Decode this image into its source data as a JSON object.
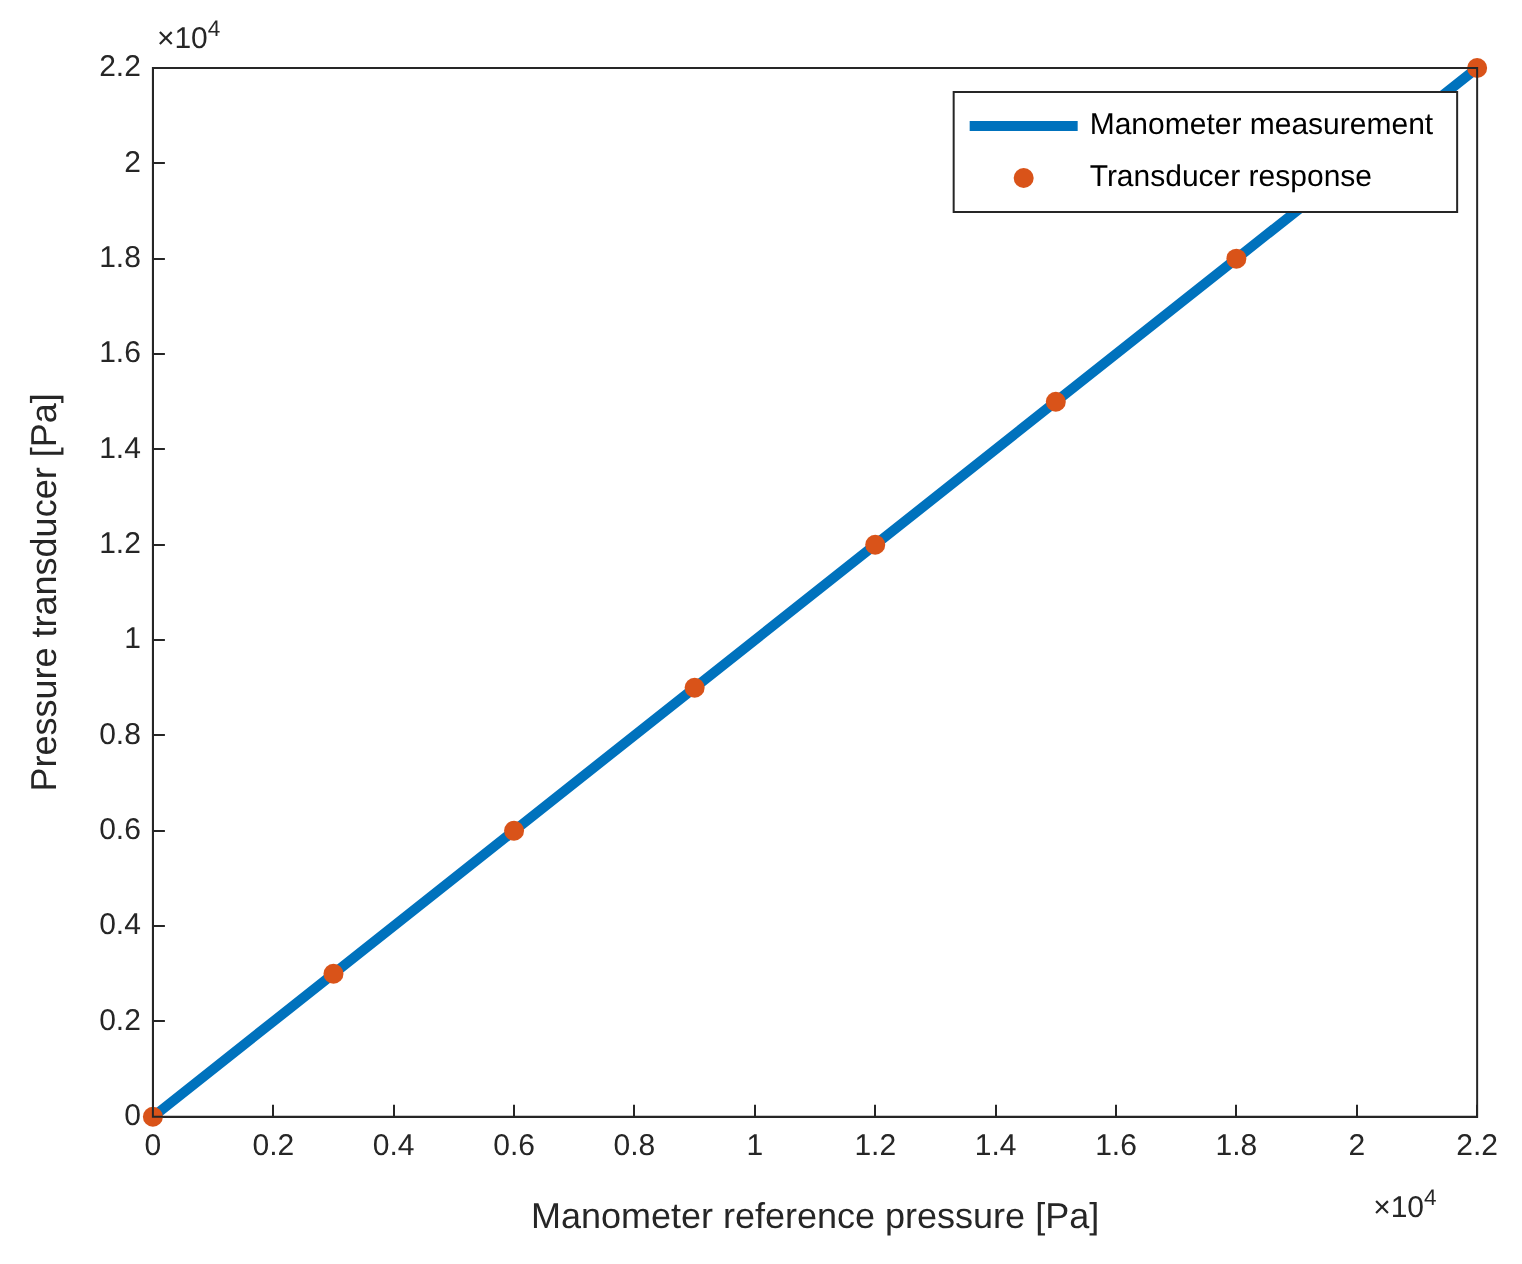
{
  "chart_data": {
    "type": "line",
    "xlabel": "Manometer reference pressure [Pa]",
    "ylabel": "Pressure transducer [Pa]",
    "xlim": [
      0,
      2.2
    ],
    "ylim": [
      0,
      2.2
    ],
    "xticks": [
      0,
      0.2,
      0.4,
      0.6,
      0.8,
      1,
      1.2,
      1.4,
      1.6,
      1.8,
      2,
      2.2
    ],
    "yticks": [
      0,
      0.2,
      0.4,
      0.6,
      0.8,
      1,
      1.2,
      1.4,
      1.6,
      1.8,
      2,
      2.2
    ],
    "series": [
      {
        "name": "Manometer measurement",
        "color": "#0072bd",
        "x": [
          0,
          2.2
        ],
        "values": [
          0,
          2.2
        ],
        "marker": "none",
        "line_style": "solid"
      },
      {
        "name": "Transducer response",
        "type": "scatter",
        "color": "#d95319",
        "x": [
          0,
          0.3,
          0.6,
          0.9,
          1.2,
          1.5,
          1.8,
          2.2
        ],
        "values": [
          0,
          0.3,
          0.6,
          0.9,
          1.2,
          1.5,
          1.8,
          2.2
        ],
        "marker": "circle"
      }
    ],
    "annotations": [
      "×10$^{4}$",
      "×10$^{4}$"
    ],
    "legend": "top right",
    "grid": false
  }
}
